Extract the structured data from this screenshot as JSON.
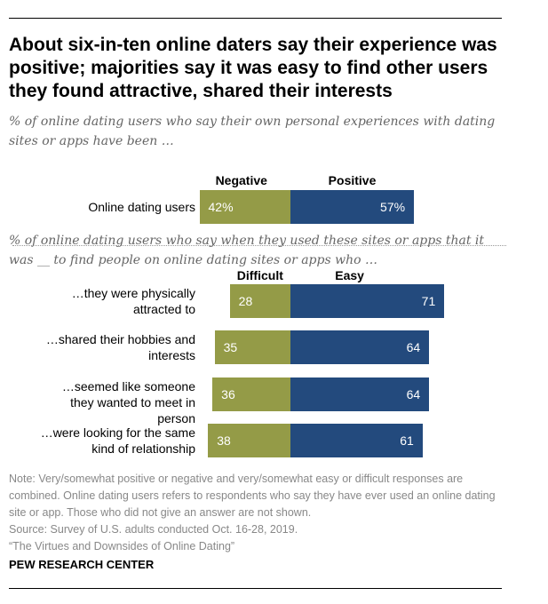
{
  "title": "About six-in-ten online daters say their experience was positive; majorities say it was easy to find other users they found attractive, shared their interests",
  "subtitle1": "% of online dating users who say their own personal experiences with dating sites or apps have been …",
  "subtitle2": "% of online dating users who say when they used these sites or apps that it was __ to find people on online dating sites or apps who …",
  "colors": {
    "negative": "#949b47",
    "positive": "#234a7d"
  },
  "chart_data": [
    {
      "type": "bar",
      "orientation": "horizontal-diverging",
      "legend": [
        "Negative",
        "Positive"
      ],
      "categories": [
        "Online dating users"
      ],
      "series": [
        {
          "name": "Negative",
          "values": [
            42
          ],
          "labels": [
            "42%"
          ]
        },
        {
          "name": "Positive",
          "values": [
            57
          ],
          "labels": [
            "57%"
          ]
        }
      ]
    },
    {
      "type": "bar",
      "orientation": "horizontal-diverging",
      "legend": [
        "Difficult",
        "Easy"
      ],
      "categories": [
        "…they were physically attracted to",
        "…shared their hobbies and interests",
        "…seemed like someone they wanted to meet in person",
        "…were looking for the same kind of relationship"
      ],
      "series": [
        {
          "name": "Difficult",
          "values": [
            28,
            35,
            36,
            38
          ],
          "labels": [
            "28",
            "35",
            "36",
            "38"
          ]
        },
        {
          "name": "Easy",
          "values": [
            71,
            64,
            64,
            61
          ],
          "labels": [
            "71",
            "64",
            "64",
            "61"
          ]
        }
      ]
    }
  ],
  "notes": [
    "Note: Very/somewhat positive or negative and very/somewhat easy or difficult responses are combined. Online dating users refers to respondents who say they have ever used an online dating site or app. Those who did not give an answer are not shown.",
    "Source: Survey of U.S. adults conducted Oct. 16-28, 2019.",
    "“The Virtues and Downsides of Online Dating”"
  ],
  "brand": "PEW RESEARCH CENTER"
}
